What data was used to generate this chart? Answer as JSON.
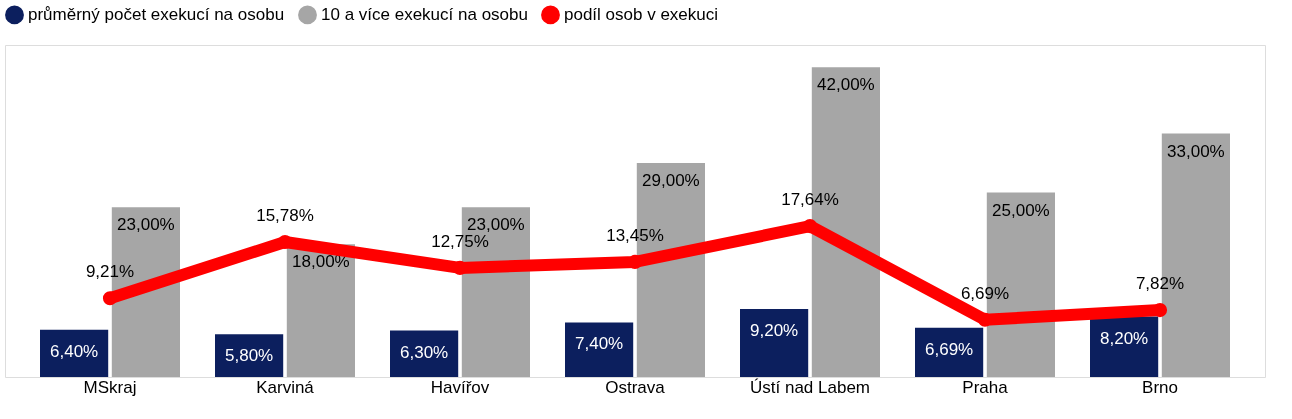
{
  "chart_data": {
    "type": "bar",
    "categories": [
      "MSkraj",
      "Karviná",
      "Havířov",
      "Ostrava",
      "Ústí nad Labem",
      "Praha",
      "Brno"
    ],
    "series": [
      {
        "name": "průměrný počet exekucí na osobu",
        "color": "#0c1f5e",
        "values": [
          6.4,
          5.8,
          6.3,
          7.4,
          9.2,
          6.69,
          8.2
        ],
        "value_labels": [
          "6,40%",
          "5,80%",
          "6,30%",
          "7,40%",
          "9,20%",
          "6,69%",
          "8,20%"
        ]
      },
      {
        "name": "10 a více exekucí na osobu",
        "color": "#a6a6a6",
        "values": [
          23,
          18,
          23,
          29,
          42,
          25,
          33
        ],
        "value_labels": [
          "23,00%",
          "18,00%",
          "23,00%",
          "29,00%",
          "42,00%",
          "25,00%",
          "33,00%"
        ]
      },
      {
        "name": "podíl osob v exekuci",
        "type": "line",
        "axis": "y2",
        "line_style": "solid",
        "color": "#ff0000",
        "marker": "circle",
        "values": [
          9.21,
          15.78,
          12.75,
          13.45,
          17.64,
          6.69,
          7.82
        ],
        "value_labels": [
          "9,21%",
          "15,78%",
          "12,75%",
          "13,45%",
          "17,64%",
          "6,69%",
          "7,82%"
        ]
      }
    ],
    "legend": "top",
    "grid": false
  }
}
